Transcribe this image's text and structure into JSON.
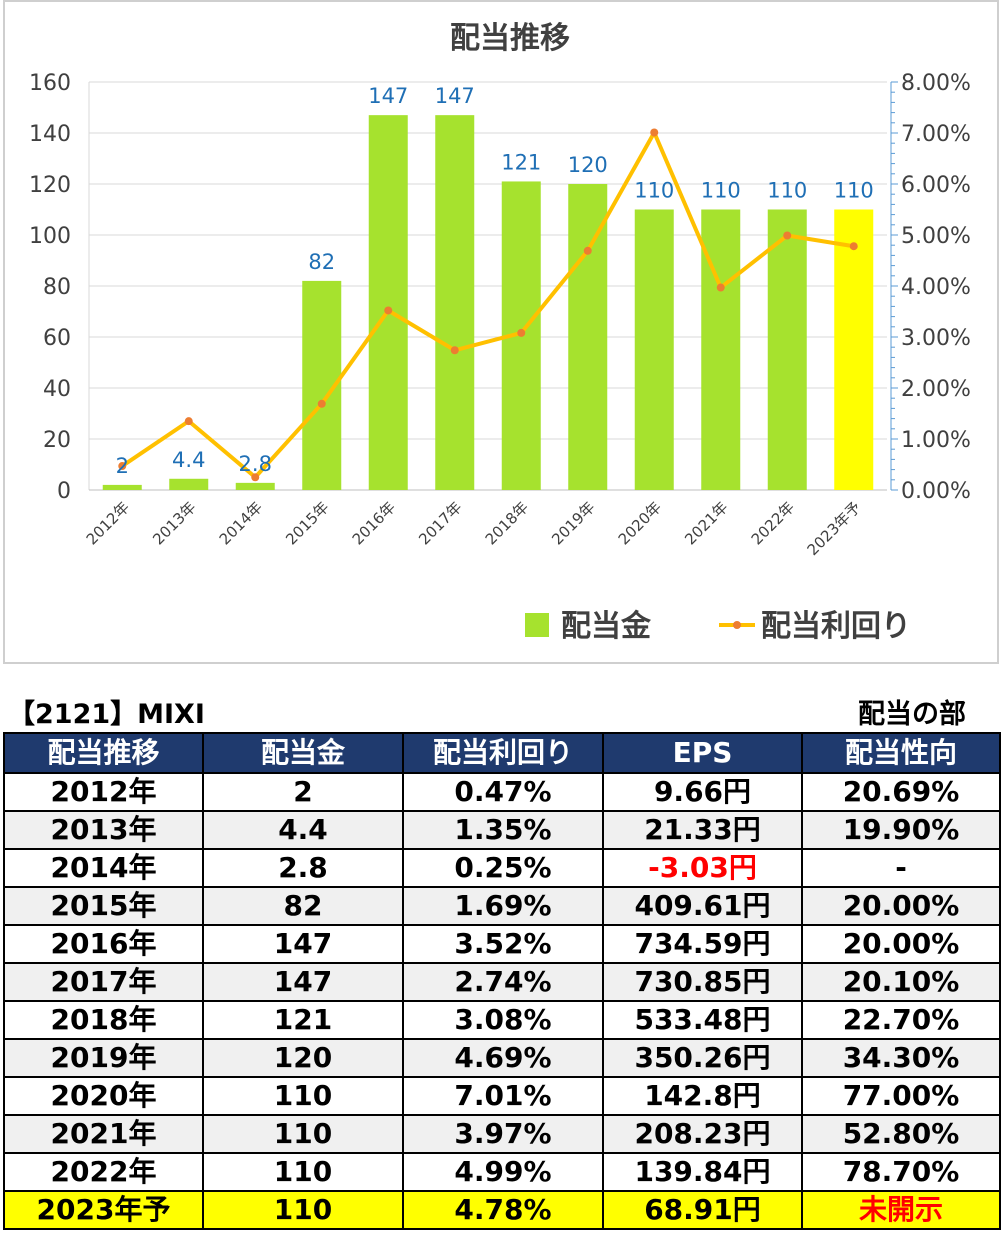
{
  "chart_data": {
    "type": "bar+line",
    "title": "配当推移",
    "categories": [
      "2012年",
      "2013年",
      "2014年",
      "2015年",
      "2016年",
      "2017年",
      "2018年",
      "2019年",
      "2020年",
      "2021年",
      "2022年",
      "2023年予"
    ],
    "series": [
      {
        "name": "配当金",
        "type": "bar",
        "axis": "left",
        "values": [
          2,
          4.4,
          2.8,
          82,
          147,
          147,
          121,
          120,
          110,
          110,
          110,
          110
        ],
        "labels": [
          "2",
          "4.4",
          "2.8",
          "82",
          "147",
          "147",
          "121",
          "120",
          "110",
          "110",
          "110",
          "110"
        ],
        "color": "#a6e22e",
        "highlight_color": "#ffff00",
        "highlight_index": 11
      },
      {
        "name": "配当利回り",
        "type": "line",
        "axis": "right",
        "values": [
          0.47,
          1.35,
          0.25,
          1.69,
          3.52,
          2.74,
          3.08,
          4.69,
          7.01,
          3.97,
          4.99,
          4.78
        ],
        "color": "#ffc000",
        "marker_color": "#ed7d31"
      }
    ],
    "ylim_left": [
      0,
      160
    ],
    "yticks_left": [
      0,
      20,
      40,
      60,
      80,
      100,
      120,
      140,
      160
    ],
    "ylim_right": [
      0,
      8
    ],
    "yticks_right": [
      "0.00%",
      "1.00%",
      "2.00%",
      "3.00%",
      "4.00%",
      "5.00%",
      "6.00%",
      "7.00%",
      "8.00%"
    ],
    "grid": true,
    "legend": "bottom-right"
  },
  "colors": {
    "bar": "#a6e22e",
    "bar_highlight": "#ffff00",
    "line": "#ffc000",
    "marker": "#ed7d31",
    "data_label": "#1f6fb5",
    "header_bg": "#1f3a6e",
    "negative": "#ff0000"
  },
  "table": {
    "stock_label": "【2121】MIXI",
    "section_label": "配当の部",
    "headers": [
      "配当推移",
      "配当金",
      "配当利回り",
      "EPS",
      "配当性向"
    ],
    "rows": [
      [
        "2012年",
        "2",
        "0.47%",
        "9.66円",
        "20.69%"
      ],
      [
        "2013年",
        "4.4",
        "1.35%",
        "21.33円",
        "19.90%"
      ],
      [
        "2014年",
        "2.8",
        "0.25%",
        "-3.03円",
        "-"
      ],
      [
        "2015年",
        "82",
        "1.69%",
        "409.61円",
        "20.00%"
      ],
      [
        "2016年",
        "147",
        "3.52%",
        "734.59円",
        "20.00%"
      ],
      [
        "2017年",
        "147",
        "2.74%",
        "730.85円",
        "20.10%"
      ],
      [
        "2018年",
        "121",
        "3.08%",
        "533.48円",
        "22.70%"
      ],
      [
        "2019年",
        "120",
        "4.69%",
        "350.26円",
        "34.30%"
      ],
      [
        "2020年",
        "110",
        "7.01%",
        "142.8円",
        "77.00%"
      ],
      [
        "2021年",
        "110",
        "3.97%",
        "208.23円",
        "52.80%"
      ],
      [
        "2022年",
        "110",
        "4.99%",
        "139.84円",
        "78.70%"
      ],
      [
        "2023年予",
        "110",
        "4.78%",
        "68.91円",
        "未開示"
      ]
    ]
  }
}
